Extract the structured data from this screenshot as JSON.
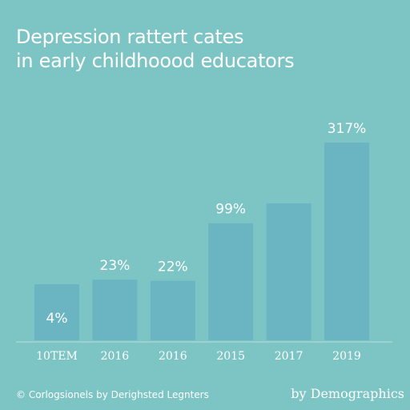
{
  "chart_data": {
    "type": "bar",
    "title_lines": [
      "Depression rattert cates",
      "in early childhoood educators"
    ],
    "categories": [
      "10TEM",
      "2016",
      "2016",
      "2015",
      "2017",
      "2019"
    ],
    "values": [
      4,
      23,
      22,
      99,
      140,
      317
    ],
    "data_labels": [
      "4%",
      "23%",
      "22%",
      "99%",
      "",
      "317%"
    ],
    "colors": {
      "background": "#7dc5c4",
      "bar": "#6bb5c3",
      "text": "#ffffff"
    }
  },
  "footer": {
    "credit": "© Corlogsionels by Derighsted Legnters",
    "source": "by Demographics"
  }
}
